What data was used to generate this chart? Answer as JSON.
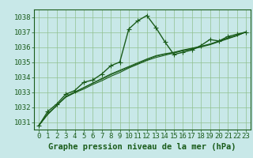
{
  "title": "Graphe pression niveau de la mer (hPa)",
  "bg_color": "#c8e8e8",
  "grid_color": "#90c090",
  "line_color": "#1a5c1a",
  "marker_color": "#1a5c1a",
  "xlim": [
    -0.5,
    23.5
  ],
  "ylim": [
    1030.5,
    1038.5
  ],
  "yticks": [
    1031,
    1032,
    1033,
    1034,
    1035,
    1036,
    1037,
    1038
  ],
  "xticks": [
    0,
    1,
    2,
    3,
    4,
    5,
    6,
    7,
    8,
    9,
    10,
    11,
    12,
    13,
    14,
    15,
    16,
    17,
    18,
    19,
    20,
    21,
    22,
    23
  ],
  "series": [
    {
      "x": [
        0,
        1,
        2,
        3,
        4,
        5,
        6,
        7,
        8,
        9,
        10,
        11,
        12,
        13,
        14,
        15,
        16,
        17,
        18,
        19,
        20,
        21,
        22,
        23
      ],
      "y": [
        1030.75,
        1031.7,
        1032.2,
        1032.85,
        1033.1,
        1033.65,
        1033.8,
        1034.2,
        1034.75,
        1035.0,
        1037.2,
        1037.75,
        1038.1,
        1037.3,
        1036.35,
        1035.5,
        1035.65,
        1035.8,
        1036.1,
        1036.5,
        1036.4,
        1036.7,
        1036.85,
        1037.0
      ],
      "has_marker": true,
      "marker": "+",
      "markersize": 4,
      "linewidth": 1.0
    },
    {
      "x": [
        0,
        1,
        2,
        3,
        4,
        5,
        6,
        7,
        8,
        9,
        10,
        11,
        12,
        13,
        14,
        15,
        16,
        17,
        18,
        19,
        20,
        21,
        22,
        23
      ],
      "y": [
        1030.75,
        1031.5,
        1032.1,
        1032.65,
        1032.95,
        1033.2,
        1033.5,
        1033.75,
        1034.05,
        1034.3,
        1034.6,
        1034.85,
        1035.1,
        1035.3,
        1035.45,
        1035.6,
        1035.75,
        1035.85,
        1036.0,
        1036.15,
        1036.35,
        1036.55,
        1036.75,
        1037.0
      ],
      "has_marker": false,
      "marker": null,
      "markersize": 0,
      "linewidth": 0.8
    },
    {
      "x": [
        0,
        1,
        2,
        3,
        4,
        5,
        6,
        7,
        8,
        9,
        10,
        11,
        12,
        13,
        14,
        15,
        16,
        17,
        18,
        19,
        20,
        21,
        22,
        23
      ],
      "y": [
        1030.75,
        1031.55,
        1032.1,
        1032.7,
        1033.0,
        1033.3,
        1033.6,
        1033.9,
        1034.2,
        1034.45,
        1034.7,
        1034.95,
        1035.2,
        1035.42,
        1035.55,
        1035.65,
        1035.8,
        1035.92,
        1036.05,
        1036.2,
        1036.4,
        1036.6,
        1036.78,
        1037.0
      ],
      "has_marker": false,
      "marker": null,
      "markersize": 0,
      "linewidth": 0.8
    },
    {
      "x": [
        0,
        1,
        2,
        3,
        4,
        5,
        6,
        7,
        8,
        9,
        10,
        11,
        12,
        13,
        14,
        15,
        16,
        17,
        18,
        19,
        20,
        21,
        22,
        23
      ],
      "y": [
        1030.75,
        1031.52,
        1032.1,
        1032.68,
        1032.98,
        1033.28,
        1033.58,
        1033.85,
        1034.15,
        1034.4,
        1034.65,
        1034.9,
        1035.15,
        1035.38,
        1035.52,
        1035.62,
        1035.77,
        1035.9,
        1036.03,
        1036.18,
        1036.38,
        1036.58,
        1036.77,
        1037.0
      ],
      "has_marker": false,
      "marker": null,
      "markersize": 0,
      "linewidth": 0.7
    }
  ],
  "font_color": "#1a5c1a",
  "title_fontsize": 7.5,
  "tick_fontsize": 6.5
}
